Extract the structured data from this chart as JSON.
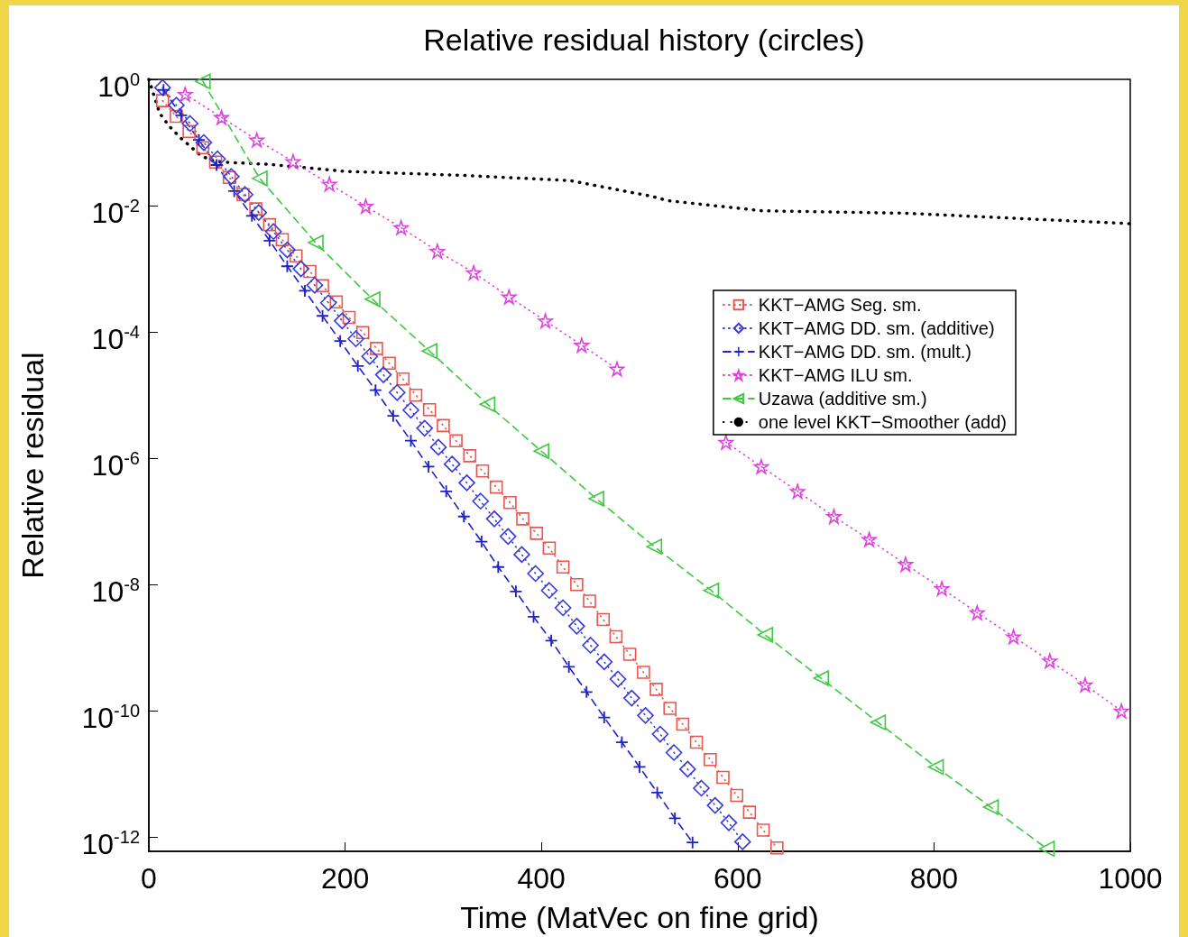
{
  "chart_data": {
    "type": "line",
    "title": "Relative residual history (circles)",
    "xlabel": "Time (MatVec on fine grid)",
    "ylabel": "Relative residual",
    "log": "y",
    "grid": false,
    "legend": "right",
    "xlim": [
      0,
      1000
    ],
    "xticks": [
      0,
      200,
      400,
      600,
      800,
      1000
    ],
    "ylim": [
      6e-13,
      1
    ],
    "yticks": [
      {
        "value": 1,
        "label": "10$^{0}$"
      },
      {
        "value": 0.01,
        "label": "10$^{-2}$"
      },
      {
        "value": 0.0001,
        "label": "10$^{-4}$"
      },
      {
        "value": 1e-06,
        "label": "10$^{-6}$"
      },
      {
        "value": 1e-08,
        "label": "10$^{-8}$"
      },
      {
        "value": 1e-10,
        "label": "10$^{-10}$"
      },
      {
        "value": 1e-12,
        "label": "10$^{-12}$"
      }
    ],
    "series": [
      {
        "name": "KKT−AMG Seg. sm.",
        "color": "#e8574f",
        "marker": "square",
        "line_style": "dotted",
        "x": [
          14,
          28,
          41,
          55,
          68,
          82,
          96,
          109,
          123,
          136,
          150,
          164,
          177,
          191,
          204,
          218,
          232,
          245,
          259,
          272,
          286,
          300,
          313,
          327,
          340,
          354,
          368,
          381,
          395,
          408,
          422,
          436,
          449,
          463,
          476,
          490,
          504,
          517,
          531,
          544,
          558,
          572,
          585,
          599,
          612,
          626,
          640
        ],
        "values": [
          0.46,
          0.26,
          0.15,
          0.083,
          0.049,
          0.028,
          0.015,
          0.0089,
          0.005,
          0.0029,
          0.0016,
          0.00091,
          0.00054,
          0.0003,
          0.00017,
          9.8e-05,
          5.5e-05,
          3.2e-05,
          1.8e-05,
          1e-05,
          5.9e-06,
          3.3e-06,
          1.9e-06,
          1.1e-06,
          6.3e-07,
          3.5e-07,
          2e-07,
          1.1e-07,
          6.5e-08,
          3.8e-08,
          1.9e-08,
          1e-08,
          5.5e-09,
          2.8e-09,
          1.5e-09,
          7.9e-10,
          4.1e-10,
          2.2e-10,
          1.1e-10,
          6.2e-11,
          3.2e-11,
          1.7e-11,
          8.9e-12,
          4.6e-12,
          2.5e-12,
          1.3e-12,
          6.8e-13
        ]
      },
      {
        "name": "KKT−AMG DD. sm. (additive)",
        "color": "#3838e0",
        "marker": "diamond",
        "line_style": "dotted",
        "x": [
          14,
          28,
          42,
          56,
          70,
          84,
          98,
          112,
          127,
          141,
          155,
          169,
          183,
          197,
          211,
          225,
          239,
          253,
          267,
          281,
          295,
          309,
          324,
          338,
          352,
          366,
          380,
          394,
          408,
          422,
          436,
          450,
          464,
          478,
          492,
          506,
          521,
          535,
          549,
          563,
          577,
          591,
          605
        ],
        "values": [
          0.74,
          0.39,
          0.2,
          0.1,
          0.055,
          0.029,
          0.015,
          0.0078,
          0.0039,
          0.002,
          0.001,
          0.00055,
          0.00029,
          0.00015,
          7.8e-05,
          4.1e-05,
          2.1e-05,
          1.1e-05,
          5.8e-06,
          3e-06,
          1.5e-06,
          8.1e-07,
          4.1e-07,
          2.1e-07,
          1.1e-07,
          5.8e-08,
          3e-08,
          1.5e-08,
          8.1e-09,
          4.3e-09,
          2.2e-09,
          1.1e-09,
          6e-10,
          3.2e-10,
          1.6e-10,
          8.5e-11,
          4.3e-11,
          2.2e-11,
          1.2e-11,
          6e-12,
          3.2e-12,
          1.7e-12,
          8.5e-13
        ]
      },
      {
        "name": "KKT−AMG DD. sm. (mult.)",
        "color": "#2020c8",
        "marker": "cross",
        "line_style": "dashed",
        "x": [
          15,
          33,
          51,
          69,
          87,
          105,
          123,
          141,
          159,
          177,
          195,
          213,
          231,
          249,
          267,
          285,
          303,
          321,
          339,
          356,
          374,
          392,
          410,
          428,
          446,
          464,
          482,
          500,
          518,
          536,
          554
        ],
        "values": [
          0.68,
          0.27,
          0.11,
          0.044,
          0.017,
          0.0069,
          0.0028,
          0.0011,
          0.00045,
          0.00018,
          7.2e-05,
          2.9e-05,
          1.2e-05,
          4.7e-06,
          1.9e-06,
          7.4e-07,
          3e-07,
          1.2e-07,
          4.8e-08,
          1.9e-08,
          7.8e-09,
          3.1e-09,
          1.3e-09,
          5e-10,
          2e-10,
          7.9e-11,
          3.2e-11,
          1.3e-11,
          5.1e-12,
          2e-12,
          8.3e-13
        ]
      },
      {
        "name": "KKT−AMG ILU sm.",
        "color": "#e040e0",
        "marker": "star",
        "line_style": "dotted",
        "x": [
          37,
          74,
          110,
          147,
          184,
          221,
          257,
          294,
          331,
          367,
          404,
          441,
          477,
          514,
          551,
          588,
          624,
          661,
          698,
          734,
          771,
          808,
          844,
          881,
          918,
          954,
          991
        ],
        "values": [
          0.58,
          0.25,
          0.11,
          0.05,
          0.022,
          0.0098,
          0.0045,
          0.0019,
          0.00087,
          0.00036,
          0.00015,
          6.2e-05,
          2.6e-05,
          null,
          null,
          1.8e-06,
          7.4e-07,
          3e-07,
          1.2e-07,
          5.2e-08,
          2.1e-08,
          8.7e-09,
          3.6e-09,
          1.5e-09,
          6.2e-10,
          2.6e-10,
          1e-10
        ]
      },
      {
        "name": "Uzawa (additive sm.)",
        "color": "#40c840",
        "marker": "triangle",
        "line_style": "dashed",
        "x": [
          55,
          113,
          170,
          228,
          286,
          345,
          400,
          456,
          515,
          573,
          628,
          685,
          743,
          802,
          858,
          915
        ],
        "values": [
          0.93,
          0.027,
          0.0026,
          0.00033,
          5e-05,
          7.2e-06,
          1.3e-06,
          2.3e-07,
          4e-08,
          8.1e-09,
          1.6e-09,
          3.3e-10,
          6.6e-11,
          1.3e-11,
          3e-12,
          6.6e-13
        ]
      },
      {
        "name": "one level KKT−Smoother (add)",
        "color": "#000000",
        "marker": "none",
        "line_style": "dotted",
        "x": [
          0,
          11,
          21,
          32,
          43,
          53,
          64,
          75,
          124,
          200,
          324,
          429,
          513,
          529,
          625,
          771,
          1000
        ],
        "values": [
          1,
          0.29,
          0.18,
          0.12,
          0.085,
          0.062,
          0.052,
          0.049,
          0.045,
          0.035,
          0.03,
          0.025,
          0.014,
          0.012,
          0.0083,
          0.0076,
          0.0052
        ]
      }
    ]
  }
}
